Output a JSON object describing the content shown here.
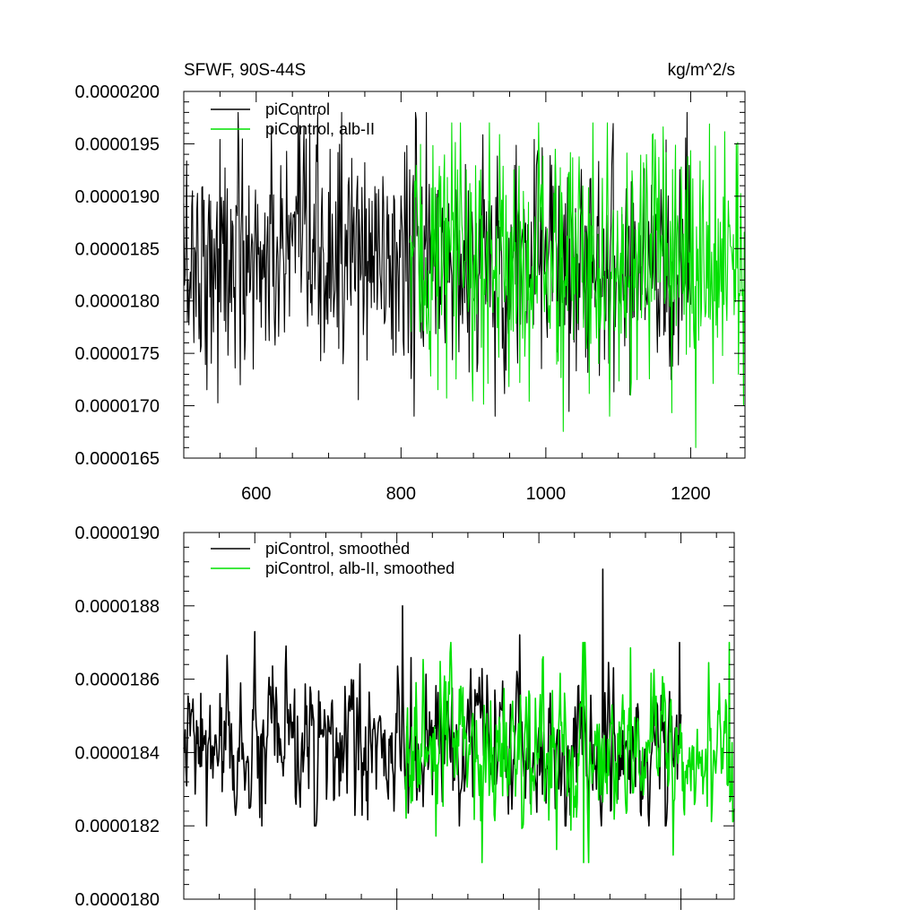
{
  "chart_data": [
    {
      "type": "line",
      "title": "SFWF, 90S-44S",
      "units": "kg/m^2/s",
      "xlim": [
        500,
        1275
      ],
      "ylim": [
        1.65e-05,
        2e-05
      ],
      "x_ticks": [
        600,
        800,
        1000,
        1200
      ],
      "x_tick_labels": [
        "600",
        "800",
        "1000",
        "1200"
      ],
      "y_ticks": [
        1.65e-05,
        1.7e-05,
        1.75e-05,
        1.8e-05,
        1.85e-05,
        1.9e-05,
        1.95e-05,
        2e-05
      ],
      "y_tick_labels": [
        "0.0000165",
        "0.0000170",
        "0.0000175",
        "0.0000180",
        "0.0000185",
        "0.0000190",
        "0.0000195",
        "0.0000200"
      ],
      "legend_position": "top-left",
      "series": [
        {
          "name": "piControl",
          "color": "#000000",
          "x_start": 500,
          "x_end": 1200,
          "mean": 1.84e-05,
          "spread": 5.5e-07,
          "range_observed": [
            1.69e-05,
            1.98e-05
          ],
          "notable_points": [
            [
              575,
              1.98e-05
            ],
            [
              578,
              1.72e-05
            ],
            [
              718,
              1.98e-05
            ],
            [
              720,
              1.74e-05
            ],
            [
              930,
              1.69e-05
            ],
            [
              1195,
              1.98e-05
            ]
          ]
        },
        {
          "name": "piControl, alb-II",
          "color": "#00e000",
          "x_start": 812,
          "x_end": 1275,
          "mean": 1.84e-05,
          "spread": 6e-07,
          "range_observed": [
            1.66e-05,
            1.97e-05
          ],
          "notable_points": [
            [
              1085,
              1.97e-05
            ],
            [
              1088,
              1.69e-05
            ],
            [
              1207,
              1.66e-05
            ],
            [
              1266,
              1.73e-05
            ]
          ]
        }
      ]
    },
    {
      "type": "line",
      "title": "",
      "xlim": [
        500,
        1275
      ],
      "ylim": [
        1.8e-05,
        1.9e-05
      ],
      "x_ticks": [
        600,
        800,
        1000,
        1200
      ],
      "y_ticks": [
        1.8e-05,
        1.82e-05,
        1.84e-05,
        1.86e-05,
        1.88e-05,
        1.9e-05
      ],
      "y_tick_labels": [
        "0.0000180",
        "0.0000182",
        "0.0000184",
        "0.0000186",
        "0.0000188",
        "0.0000190"
      ],
      "legend_position": "top-left",
      "series": [
        {
          "name": "piControl, smoothed",
          "color": "#000000",
          "x_start": 500,
          "x_end": 1200,
          "mean": 1.84e-05,
          "spread": 1.1e-07,
          "range_observed": [
            1.82e-05,
            1.89e-05
          ],
          "notable_points": [
            [
              532,
              1.82e-05
            ],
            [
              610,
              1.82e-05
            ],
            [
              808,
              1.88e-05
            ],
            [
              1090,
              1.89e-05
            ],
            [
              1198,
              1.87e-05
            ]
          ]
        },
        {
          "name": "piControl, alb-II, smoothed",
          "color": "#00e000",
          "x_start": 812,
          "x_end": 1275,
          "mean": 1.84e-05,
          "spread": 1.2e-07,
          "range_observed": [
            1.81e-05,
            1.87e-05
          ],
          "notable_points": [
            [
              920,
              1.81e-05
            ],
            [
              1063,
              1.81e-05
            ],
            [
              1268,
              1.87e-05
            ]
          ]
        }
      ]
    }
  ]
}
